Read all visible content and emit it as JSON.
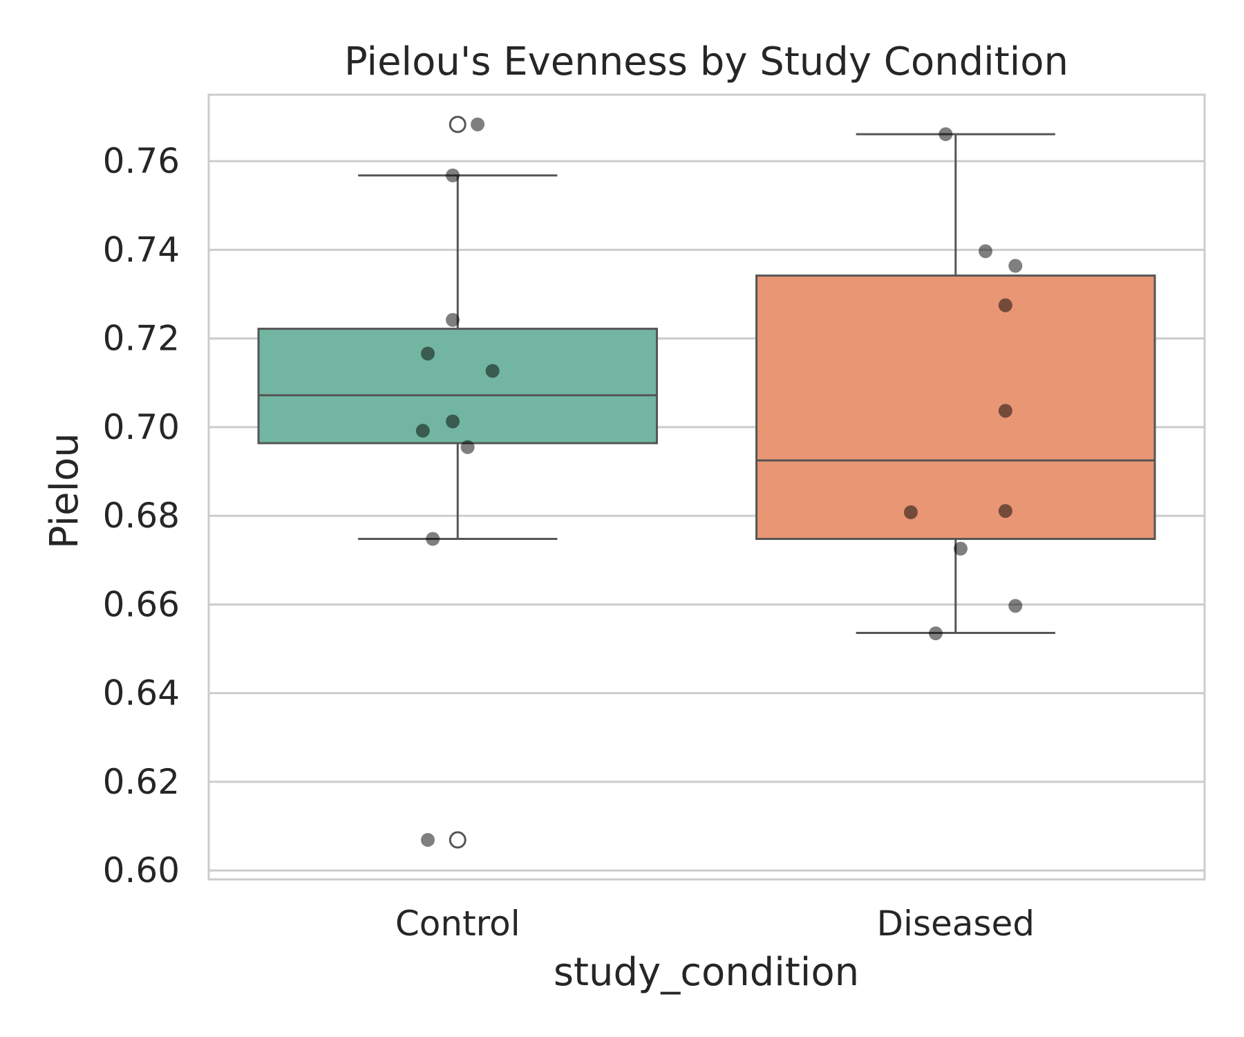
{
  "chart_data": {
    "type": "box",
    "title": "Pielou's Evenness by Study Condition",
    "xlabel": "study_condition",
    "ylabel": "Pielou",
    "ylim": [
      0.598,
      0.775
    ],
    "yticks": [
      0.6,
      0.62,
      0.64,
      0.66,
      0.68,
      0.7,
      0.72,
      0.74,
      0.76
    ],
    "grid": true,
    "categories": [
      "Control",
      "Diseased"
    ],
    "colors": {
      "Control": "#72b6a1",
      "Diseased": "#e99675"
    },
    "boxes": [
      {
        "category": "Control",
        "whisker_low": 0.6748,
        "q1": 0.6964,
        "median": 0.7072,
        "q3": 0.7222,
        "whisker_high": 0.7568,
        "outliers": [
          0.7683,
          0.6069
        ]
      },
      {
        "category": "Diseased",
        "whisker_low": 0.6536,
        "q1": 0.6748,
        "median": 0.6925,
        "q3": 0.7342,
        "whisker_high": 0.7661,
        "outliers": []
      }
    ],
    "points": [
      {
        "category": "Control",
        "jitter": 0.04,
        "y": 0.7683
      },
      {
        "category": "Control",
        "jitter": -0.01,
        "y": 0.7568
      },
      {
        "category": "Control",
        "jitter": -0.01,
        "y": 0.7242
      },
      {
        "category": "Control",
        "jitter": -0.06,
        "y": 0.7166
      },
      {
        "category": "Control",
        "jitter": 0.07,
        "y": 0.7127
      },
      {
        "category": "Control",
        "jitter": -0.01,
        "y": 0.7013
      },
      {
        "category": "Control",
        "jitter": -0.07,
        "y": 0.6992
      },
      {
        "category": "Control",
        "jitter": 0.02,
        "y": 0.6955
      },
      {
        "category": "Control",
        "jitter": -0.05,
        "y": 0.6748
      },
      {
        "category": "Control",
        "jitter": -0.06,
        "y": 0.6069
      },
      {
        "category": "Diseased",
        "jitter": -0.02,
        "y": 0.7661
      },
      {
        "category": "Diseased",
        "jitter": 0.06,
        "y": 0.7397
      },
      {
        "category": "Diseased",
        "jitter": 0.12,
        "y": 0.7364
      },
      {
        "category": "Diseased",
        "jitter": 0.1,
        "y": 0.7275
      },
      {
        "category": "Diseased",
        "jitter": 0.1,
        "y": 0.7037
      },
      {
        "category": "Diseased",
        "jitter": 0.1,
        "y": 0.6811
      },
      {
        "category": "Diseased",
        "jitter": -0.09,
        "y": 0.6808
      },
      {
        "category": "Diseased",
        "jitter": 0.01,
        "y": 0.6726
      },
      {
        "category": "Diseased",
        "jitter": 0.12,
        "y": 0.6597
      },
      {
        "category": "Diseased",
        "jitter": -0.04,
        "y": 0.6535
      }
    ]
  }
}
